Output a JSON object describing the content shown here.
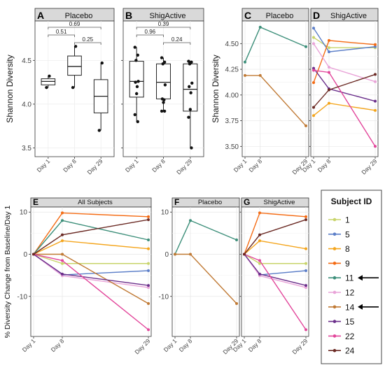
{
  "subjects": {
    "title": "Subject ID",
    "ids": [
      "1",
      "5",
      "8",
      "9",
      "11",
      "12",
      "14",
      "15",
      "22",
      "24"
    ],
    "colors": {
      "1": "#c8d46a",
      "5": "#5b7ec8",
      "8": "#f4a51c",
      "9": "#f46a12",
      "11": "#3d8f7a",
      "12": "#e9a3d8",
      "14": "#c07a35",
      "15": "#6a2e8a",
      "22": "#e2459a",
      "24": "#6b2a24"
    },
    "arrow_ids": [
      "11",
      "14"
    ]
  },
  "chart_data": [
    {
      "id": "A",
      "type": "box",
      "panel_letter": "A",
      "strip": "Placebo",
      "ylabel": "Shannon Diversity",
      "categories": [
        "Day 1",
        "Day 8",
        "Day 29"
      ],
      "ylim": [
        3.4,
        4.95
      ],
      "yticks": [
        3.5,
        4.0,
        4.5
      ],
      "ytick_labels": [
        "3.5",
        "4.0",
        "4.5"
      ],
      "boxes": [
        {
          "q1": 4.22,
          "median": 4.26,
          "q3": 4.29,
          "whisker_low": 4.19,
          "whisker_high": 4.32
        },
        {
          "q1": 4.33,
          "median": 4.43,
          "q3": 4.55,
          "whisker_low": 4.19,
          "whisker_high": 4.66
        },
        {
          "q1": 3.9,
          "median": 4.09,
          "q3": 4.28,
          "whisker_low": 3.7,
          "whisker_high": 4.47
        }
      ],
      "points": [
        [
          4.19,
          4.32
        ],
        [
          4.19,
          4.66
        ],
        [
          3.7,
          4.47
        ]
      ],
      "comparisons": [
        {
          "from": 0,
          "to": 2,
          "label": "0.69",
          "level": 0
        },
        {
          "from": 0,
          "to": 1,
          "label": "0.51",
          "level": 1
        },
        {
          "from": 1,
          "to": 2,
          "label": "0.25",
          "level": 2
        }
      ]
    },
    {
      "id": "B",
      "type": "box",
      "panel_letter": "B",
      "strip": "ShigActive",
      "categories": [
        "Day 1",
        "Day 8",
        "Day 29"
      ],
      "ylim": [
        3.4,
        4.95
      ],
      "yticks": [
        3.5,
        4.0,
        4.5
      ],
      "boxes": [
        {
          "q1": 4.08,
          "median": 4.26,
          "q3": 4.49,
          "whisker_low": 3.8,
          "whisker_high": 4.65
        },
        {
          "q1": 4.06,
          "median": 4.25,
          "q3": 4.46,
          "whisker_low": 3.92,
          "whisker_high": 4.53
        },
        {
          "q1": 3.92,
          "median": 4.17,
          "q3": 4.46,
          "whisker_low": 3.5,
          "whisker_high": 4.49
        }
      ],
      "points": [
        [
          4.65,
          4.56,
          4.5,
          4.26,
          4.25,
          4.2,
          4.12,
          3.88,
          3.8
        ],
        [
          4.53,
          4.48,
          4.46,
          4.22,
          4.06,
          4.05,
          4.02,
          3.92,
          3.92
        ],
        [
          4.49,
          4.48,
          4.46,
          4.24,
          4.2,
          4.13,
          3.94,
          3.85,
          3.5
        ]
      ],
      "comparisons": [
        {
          "from": 0,
          "to": 2,
          "label": "0.39",
          "level": 0
        },
        {
          "from": 0,
          "to": 1,
          "label": "0.96",
          "level": 1
        },
        {
          "from": 1,
          "to": 2,
          "label": "0.24",
          "level": 2
        }
      ]
    },
    {
      "id": "C",
      "type": "line",
      "panel_letter": "C",
      "strip": "Placebo",
      "ylabel": "Shannon Diversity",
      "x": [
        1,
        8,
        29
      ],
      "x_labels": [
        "Day 1",
        "Day 8",
        "Day 29"
      ],
      "ylim": [
        3.4,
        4.72
      ],
      "yticks": [
        3.5,
        3.75,
        4.0,
        4.25,
        4.5
      ],
      "ytick_labels": [
        "3.50",
        "3.75",
        "4.00",
        "4.25",
        "4.50"
      ],
      "series": [
        {
          "name": "11",
          "values": [
            4.32,
            4.66,
            4.47
          ]
        },
        {
          "name": "14",
          "values": [
            4.19,
            4.19,
            3.7
          ]
        }
      ]
    },
    {
      "id": "D",
      "type": "line",
      "panel_letter": "D",
      "strip": "ShigActive",
      "x": [
        1,
        8,
        29
      ],
      "x_labels": [
        "Day 1",
        "Day 8",
        "Day 29"
      ],
      "ylim": [
        3.4,
        4.72
      ],
      "yticks": [
        3.5,
        3.75,
        4.0,
        4.25,
        4.5
      ],
      "series": [
        {
          "name": "1",
          "values": [
            4.56,
            4.46,
            4.46
          ]
        },
        {
          "name": "5",
          "values": [
            4.65,
            4.42,
            4.47
          ]
        },
        {
          "name": "8",
          "values": [
            3.8,
            3.92,
            3.85
          ]
        },
        {
          "name": "9",
          "values": [
            4.12,
            4.53,
            4.49
          ]
        },
        {
          "name": "12",
          "values": [
            4.5,
            4.27,
            4.13
          ]
        },
        {
          "name": "15",
          "values": [
            4.26,
            4.06,
            3.94
          ]
        },
        {
          "name": "22",
          "values": [
            4.24,
            4.22,
            3.5
          ]
        },
        {
          "name": "24",
          "values": [
            3.88,
            4.05,
            4.2
          ]
        }
      ]
    },
    {
      "id": "E",
      "type": "line",
      "panel_letter": "E",
      "strip": "All Subjects",
      "ylabel": "% Diversity Change from Baseline/Day 1",
      "x": [
        1,
        8,
        29
      ],
      "x_labels": [
        "Day 1",
        "Day 8",
        "Day 29"
      ],
      "ylim": [
        -19.5,
        11.2
      ],
      "yticks": [
        -10,
        0,
        10
      ],
      "ytick_labels": [
        "-10",
        "0",
        "10"
      ],
      "series": [
        {
          "name": "1",
          "values": [
            0,
            -2.2,
            -2.2
          ]
        },
        {
          "name": "5",
          "values": [
            0,
            -4.9,
            -3.9
          ]
        },
        {
          "name": "8",
          "values": [
            0,
            3.2,
            1.3
          ]
        },
        {
          "name": "9",
          "values": [
            0,
            9.8,
            8.9
          ]
        },
        {
          "name": "11",
          "values": [
            0,
            8.0,
            3.4
          ]
        },
        {
          "name": "12",
          "values": [
            0,
            -5.1,
            -7.9
          ]
        },
        {
          "name": "14",
          "values": [
            0,
            0.0,
            -11.7
          ]
        },
        {
          "name": "15",
          "values": [
            0,
            -4.7,
            -7.4
          ]
        },
        {
          "name": "22",
          "values": [
            0,
            -1.5,
            -17.9
          ]
        },
        {
          "name": "24",
          "values": [
            0,
            4.6,
            8.2
          ]
        }
      ]
    },
    {
      "id": "F",
      "type": "line",
      "panel_letter": "F",
      "strip": "Placebo",
      "x": [
        1,
        8,
        29
      ],
      "x_labels": [
        "Day 1",
        "Day 8",
        "Day 29"
      ],
      "ylim": [
        -19.5,
        11.2
      ],
      "yticks": [
        -10,
        0,
        10
      ],
      "series": [
        {
          "name": "11",
          "values": [
            0,
            8.0,
            3.4
          ]
        },
        {
          "name": "14",
          "values": [
            0,
            0.0,
            -11.7
          ]
        }
      ]
    },
    {
      "id": "G",
      "type": "line",
      "panel_letter": "G",
      "strip": "ShigActive",
      "x": [
        1,
        8,
        29
      ],
      "x_labels": [
        "Day 1",
        "Day 8",
        "Day 29"
      ],
      "ylim": [
        -19.5,
        11.2
      ],
      "yticks": [
        -10,
        0,
        10
      ],
      "series": [
        {
          "name": "1",
          "values": [
            0,
            -2.2,
            -2.2
          ]
        },
        {
          "name": "5",
          "values": [
            0,
            -4.9,
            -3.9
          ]
        },
        {
          "name": "8",
          "values": [
            0,
            3.2,
            1.3
          ]
        },
        {
          "name": "9",
          "values": [
            0,
            9.8,
            8.9
          ]
        },
        {
          "name": "12",
          "values": [
            0,
            -5.1,
            -7.9
          ]
        },
        {
          "name": "15",
          "values": [
            0,
            -4.7,
            -7.4
          ]
        },
        {
          "name": "22",
          "values": [
            0,
            -1.5,
            -17.9
          ]
        },
        {
          "name": "24",
          "values": [
            0,
            4.6,
            8.2
          ]
        }
      ]
    }
  ]
}
